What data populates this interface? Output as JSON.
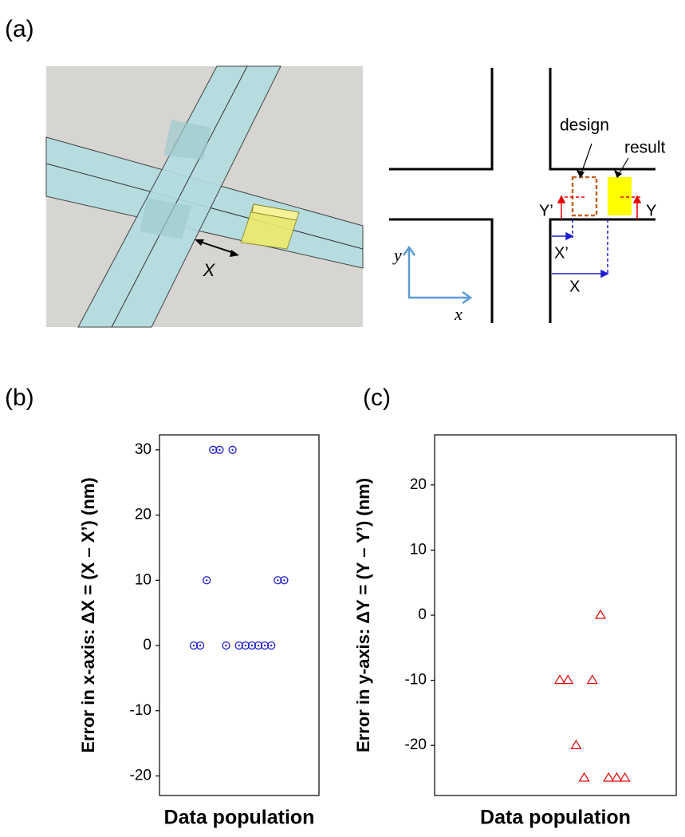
{
  "figure": {
    "label": "(a)",
    "render_label": "X",
    "schematic": {
      "design": "design",
      "result": "result",
      "y_prime": "Y’",
      "y_dist": "Y",
      "x_prime": "X’",
      "x_dist": "X",
      "axis_y": "y",
      "axis_x": "x"
    }
  },
  "chart_data": [
    {
      "type": "scatter",
      "label": "(b)",
      "ylabel": "Error in x-axis: ΔX = (X – X’) (nm)",
      "xlabel": "Data population",
      "values": [
        0,
        0,
        10,
        30,
        30,
        0,
        30,
        0,
        0,
        0,
        0,
        0,
        0,
        10,
        10
      ],
      "ylim": [
        -23,
        32.3
      ],
      "yticks": [
        -20,
        -10,
        0,
        10,
        20,
        30
      ],
      "marker": "circle-dot",
      "color": "#1f1fd0"
    },
    {
      "type": "scatter",
      "label": "(c)",
      "ylabel": "Error in y-axis: ΔY = (Y – Y’) (nm)",
      "xlabel": "Data population",
      "values": [
        -10,
        -10,
        -20,
        -25,
        -10,
        0,
        -25,
        -25,
        -25
      ],
      "ylim": [
        -27.7,
        27.7
      ],
      "yticks": [
        -20,
        -10,
        0,
        10,
        20
      ],
      "marker": "triangle",
      "color": "#e01010"
    }
  ]
}
